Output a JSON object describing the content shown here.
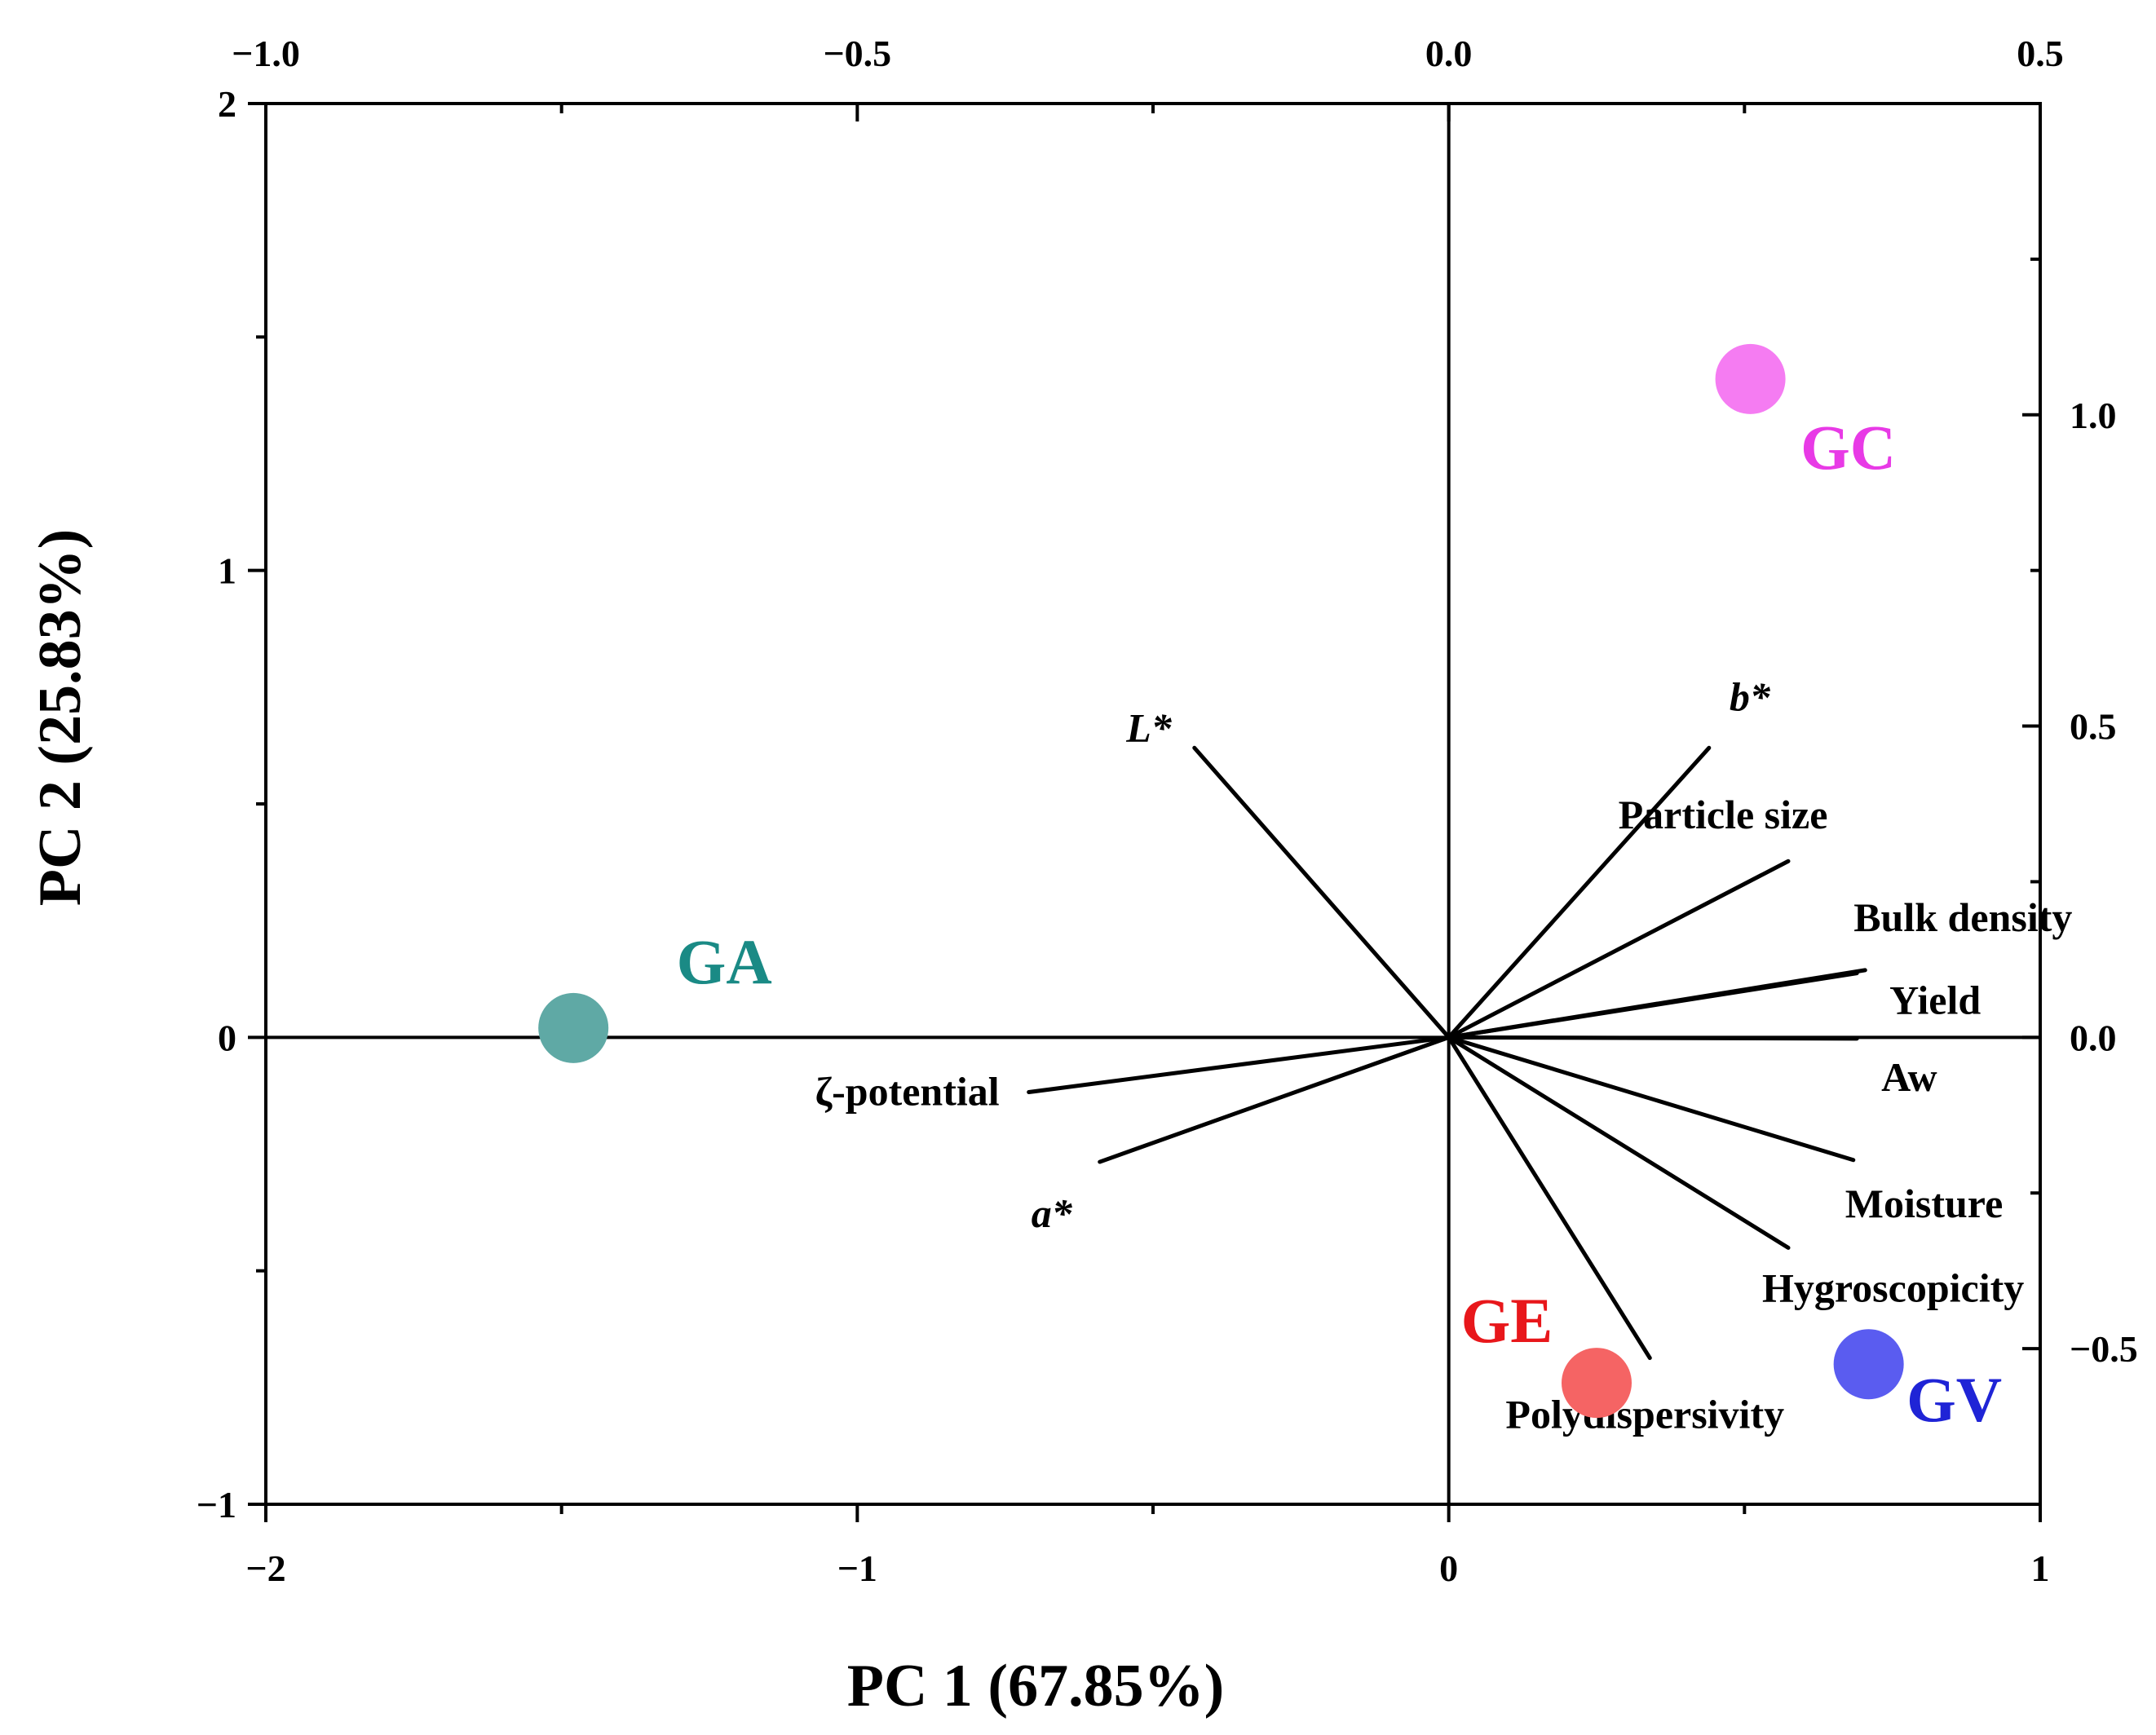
{
  "chart_data": {
    "type": "scatter",
    "subtype": "pca-biplot",
    "xlabel": "PC 1 (67.85%)",
    "ylabel": "PC 2 (25.83%)",
    "xlim": [
      -2,
      1
    ],
    "ylim": [
      -1,
      2
    ],
    "x_ticks": [
      -2,
      -1,
      0,
      1
    ],
    "x_tick_labels": [
      "−2",
      "−1",
      "0",
      "1"
    ],
    "y_ticks": [
      -1,
      0,
      1,
      2
    ],
    "y_tick_labels": [
      "−1",
      "0",
      "1",
      "2"
    ],
    "loading_xlim": [
      -1.0,
      0.5
    ],
    "loading_ylim": [
      -0.75,
      1.5
    ],
    "top_ticks": [
      -1.0,
      -0.5,
      0.0,
      0.5
    ],
    "top_tick_labels": [
      "−1.0",
      "−0.5",
      "0.0",
      "0.5"
    ],
    "right_ticks": [
      -0.5,
      0.0,
      0.5,
      1.0
    ],
    "right_tick_labels": [
      "−0.5",
      "0.0",
      "0.5",
      "1.0"
    ],
    "samples": [
      {
        "name": "GA",
        "x": -1.48,
        "y": 0.02,
        "color": "#5fa9a5",
        "label_color": "#1a8a85"
      },
      {
        "name": "GC",
        "x": 0.51,
        "y": 1.41,
        "color": "#f57cf2",
        "label_color": "#e83ae6"
      },
      {
        "name": "GE",
        "x": 0.25,
        "y": -0.74,
        "color": "#f56464",
        "label_color": "#e8171b"
      },
      {
        "name": "GV",
        "x": 0.71,
        "y": -0.7,
        "color": "#5a5cf0",
        "label_color": "#1f24d6"
      }
    ],
    "loadings": [
      {
        "name": "L*",
        "x": -0.215,
        "y": 0.465,
        "italic": true
      },
      {
        "name": "b*",
        "x": 0.22,
        "y": 0.465,
        "italic": true
      },
      {
        "name": "Particle size",
        "x": 0.287,
        "y": 0.283,
        "italic": false
      },
      {
        "name": "Bulk density",
        "x": 0.352,
        "y": 0.108,
        "italic": false
      },
      {
        "name": "Yield",
        "x": 0.345,
        "y": 0.103,
        "italic": false
      },
      {
        "name": "Aw",
        "x": 0.345,
        "y": -0.002,
        "italic": false
      },
      {
        "name": "Moisture",
        "x": 0.342,
        "y": -0.197,
        "italic": false
      },
      {
        "name": "Hygroscopicity",
        "x": 0.287,
        "y": -0.338,
        "italic": false
      },
      {
        "name": "Polydispersivity",
        "x": 0.17,
        "y": -0.515,
        "italic": false
      },
      {
        "name": "ζ-potential",
        "x": -0.355,
        "y": -0.088,
        "italic": false
      },
      {
        "name": "a*",
        "x": -0.295,
        "y": -0.2,
        "italic": true
      }
    ]
  }
}
